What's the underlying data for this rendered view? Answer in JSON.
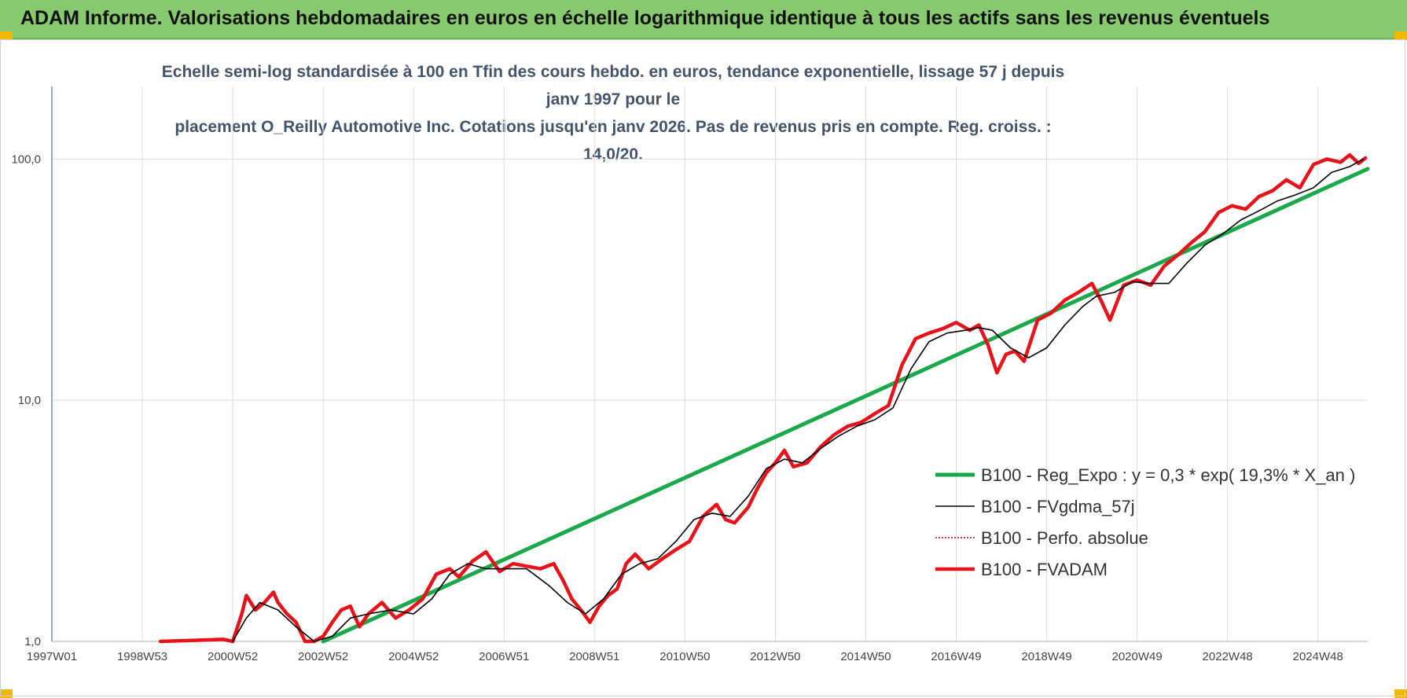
{
  "header": {
    "title": "ADAM Informe. Valorisations hebdomadaires en euros en échelle logarithmique identique à tous les actifs sans les revenus éventuels"
  },
  "chart_data": {
    "type": "line",
    "title_line1": "Echelle semi-log standardisée à 100 en Tfin des cours hebdo. en euros, tendance exponentielle, lissage 57 j depuis janv 1997 pour le",
    "title_line2": "placement O_Reilly Automotive Inc. Cotations jusqu'en janv 2026.  Pas de revenus pris en compte. Reg. croiss. : 14,0/20.",
    "y_scale": "log",
    "ylim": [
      1,
      200
    ],
    "y_ticks": [
      {
        "value": 1,
        "label": "1,0"
      },
      {
        "value": 10,
        "label": "10,0"
      },
      {
        "value": 100,
        "label": "100,0"
      }
    ],
    "xlim": [
      1997.0,
      2026.1
    ],
    "x_ticks": [
      {
        "year": 1997.0,
        "label": "1997W01"
      },
      {
        "year": 1999.0,
        "label": "1998W53"
      },
      {
        "year": 2001.0,
        "label": "2000W52"
      },
      {
        "year": 2003.0,
        "label": "2002W52"
      },
      {
        "year": 2005.0,
        "label": "2004W52"
      },
      {
        "year": 2007.0,
        "label": "2006W51"
      },
      {
        "year": 2009.0,
        "label": "2008W51"
      },
      {
        "year": 2011.0,
        "label": "2010W50"
      },
      {
        "year": 2013.0,
        "label": "2012W50"
      },
      {
        "year": 2015.0,
        "label": "2014W50"
      },
      {
        "year": 2017.0,
        "label": "2016W49"
      },
      {
        "year": 2019.0,
        "label": "2018W49"
      },
      {
        "year": 2021.0,
        "label": "2020W49"
      },
      {
        "year": 2023.0,
        "label": "2022W48"
      },
      {
        "year": 2025.0,
        "label": "2024W48"
      }
    ],
    "grid": true,
    "legend_position": "right",
    "series": [
      {
        "name": "B100 - Reg_Expo : y = 0,3 * exp( 19,3% *  X_an )",
        "color": "#1aa84a",
        "style": "solid-thick",
        "x": [
          2003.0,
          2026.1
        ],
        "y": [
          1.0,
          91
        ]
      },
      {
        "name": "B100 - FVgdma_57j",
        "color": "#000000",
        "style": "solid-thin",
        "x": [
          2001.0,
          2001.3,
          2001.6,
          2002.0,
          2002.4,
          2002.8,
          2003.2,
          2003.6,
          2004.0,
          2004.5,
          2005.0,
          2005.4,
          2005.8,
          2006.2,
          2006.6,
          2007.0,
          2007.5,
          2008.0,
          2008.4,
          2008.8,
          2009.2,
          2009.6,
          2010.0,
          2010.4,
          2010.8,
          2011.2,
          2011.6,
          2012.0,
          2012.4,
          2012.8,
          2013.2,
          2013.6,
          2014.0,
          2014.4,
          2014.8,
          2015.2,
          2015.6,
          2016.0,
          2016.4,
          2016.8,
          2017.2,
          2017.5,
          2017.8,
          2018.2,
          2018.6,
          2019.0,
          2019.4,
          2019.8,
          2020.1,
          2020.5,
          2020.9,
          2021.3,
          2021.7,
          2022.1,
          2022.5,
          2022.9,
          2023.3,
          2023.7,
          2024.1,
          2024.5,
          2024.9,
          2025.3,
          2025.7,
          2026.0
        ],
        "y": [
          0.95,
          1.25,
          1.45,
          1.35,
          1.15,
          0.98,
          1.05,
          1.25,
          1.3,
          1.35,
          1.3,
          1.5,
          1.9,
          2.1,
          2.0,
          2.0,
          2.0,
          1.7,
          1.45,
          1.3,
          1.5,
          1.9,
          2.1,
          2.2,
          2.6,
          3.2,
          3.4,
          3.3,
          4.0,
          5.2,
          5.7,
          5.5,
          6.3,
          7.1,
          7.8,
          8.3,
          9.3,
          13.5,
          17.5,
          19.0,
          19.5,
          20.0,
          19.5,
          16.5,
          15.0,
          16.5,
          20.5,
          24.5,
          27.0,
          28.0,
          31.0,
          30.5,
          30.5,
          37.0,
          44.0,
          49.0,
          56.0,
          61.0,
          67.0,
          71.0,
          76.0,
          88.0,
          93.0,
          100.0
        ]
      },
      {
        "name": "B100 - Perfo. absolue",
        "color": "#c00000",
        "style": "dotted",
        "x": [],
        "y": []
      },
      {
        "name": "B100 - FVADAM",
        "color": "#e8121a",
        "style": "solid-thick",
        "x": [
          1999.4,
          2000.8,
          2001.0,
          2001.2,
          2001.3,
          2001.5,
          2001.7,
          2001.9,
          2002.0,
          2002.2,
          2002.4,
          2002.6,
          2002.8,
          2003.0,
          2003.2,
          2003.4,
          2003.6,
          2003.8,
          2004.0,
          2004.3,
          2004.6,
          2004.9,
          2005.2,
          2005.5,
          2005.8,
          2006.0,
          2006.3,
          2006.6,
          2006.9,
          2007.2,
          2007.5,
          2007.8,
          2008.1,
          2008.3,
          2008.5,
          2008.7,
          2008.9,
          2009.1,
          2009.3,
          2009.5,
          2009.7,
          2009.9,
          2010.2,
          2010.5,
          2010.8,
          2011.1,
          2011.4,
          2011.7,
          2011.9,
          2012.1,
          2012.4,
          2012.6,
          2012.8,
          2013.0,
          2013.2,
          2013.4,
          2013.7,
          2014.0,
          2014.3,
          2014.6,
          2014.9,
          2015.2,
          2015.5,
          2015.8,
          2016.1,
          2016.4,
          2016.7,
          2017.0,
          2017.3,
          2017.5,
          2017.7,
          2017.9,
          2018.1,
          2018.3,
          2018.5,
          2018.8,
          2019.1,
          2019.4,
          2019.7,
          2020.0,
          2020.2,
          2020.4,
          2020.7,
          2021.0,
          2021.3,
          2021.6,
          2021.9,
          2022.2,
          2022.5,
          2022.8,
          2023.1,
          2023.4,
          2023.7,
          2024.0,
          2024.3,
          2024.6,
          2024.9,
          2025.2,
          2025.5,
          2025.7,
          2025.9,
          2026.05
        ],
        "y": [
          1.0,
          1.02,
          0.95,
          1.3,
          1.55,
          1.35,
          1.45,
          1.6,
          1.45,
          1.3,
          1.2,
          1.0,
          0.95,
          1.05,
          1.2,
          1.35,
          1.4,
          1.15,
          1.3,
          1.45,
          1.25,
          1.35,
          1.5,
          1.9,
          2.0,
          1.85,
          2.15,
          2.35,
          1.95,
          2.1,
          2.05,
          2.0,
          2.1,
          1.8,
          1.5,
          1.35,
          1.2,
          1.4,
          1.55,
          1.65,
          2.1,
          2.3,
          2.0,
          2.2,
          2.4,
          2.6,
          3.3,
          3.7,
          3.2,
          3.1,
          3.6,
          4.3,
          5.0,
          5.5,
          6.2,
          5.3,
          5.5,
          6.4,
          7.2,
          7.8,
          8.1,
          8.8,
          9.5,
          14.0,
          18.0,
          19.0,
          19.8,
          21.0,
          19.5,
          20.5,
          17.0,
          13.0,
          15.5,
          16.0,
          14.5,
          21.5,
          23.0,
          26.0,
          28.0,
          30.5,
          26.0,
          21.5,
          30.0,
          31.5,
          30.0,
          36.0,
          40.0,
          45.0,
          50.0,
          60.0,
          64.0,
          62.0,
          70.0,
          74.0,
          82.0,
          76.0,
          95.0,
          100.0,
          97.0,
          104.0,
          96.0,
          101.0
        ]
      }
    ]
  }
}
